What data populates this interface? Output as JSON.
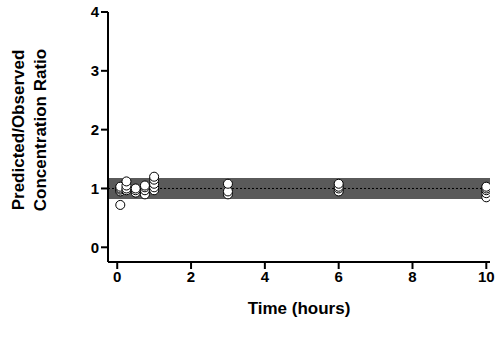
{
  "chart_data": {
    "type": "scatter",
    "x_label": "Time (hours)",
    "y_label": [
      "Predicted/Observed",
      "Concentration Ratio"
    ],
    "x": [
      0.083,
      0.083,
      0.083,
      0.083,
      0.083,
      0.25,
      0.25,
      0.25,
      0.25,
      0.5,
      0.5,
      0.5,
      0.75,
      0.75,
      0.75,
      0.75,
      1,
      1,
      1,
      1,
      1,
      3,
      3,
      3,
      6,
      6,
      6,
      6,
      10,
      10,
      10,
      10,
      10
    ],
    "values": [
      0.72,
      0.95,
      0.98,
      1.0,
      1.03,
      0.97,
      1.0,
      1.05,
      1.12,
      0.93,
      0.97,
      1.0,
      0.9,
      0.97,
      1.02,
      1.05,
      0.97,
      1.02,
      1.08,
      1.15,
      1.2,
      0.9,
      0.95,
      1.08,
      0.95,
      1.0,
      1.03,
      1.08,
      0.85,
      0.92,
      0.97,
      1.0,
      1.03
    ],
    "band": [
      0.82,
      1.18
    ],
    "reference_line": 1,
    "xlim": [
      -0.25,
      10.1
    ],
    "xticks": [
      0,
      2,
      4,
      6,
      8,
      10
    ],
    "ylim": [
      -0.25,
      4
    ],
    "yticks": [
      0,
      1,
      2,
      3,
      4
    ],
    "marker": "circle_open",
    "color": "#000000",
    "grid": false
  }
}
